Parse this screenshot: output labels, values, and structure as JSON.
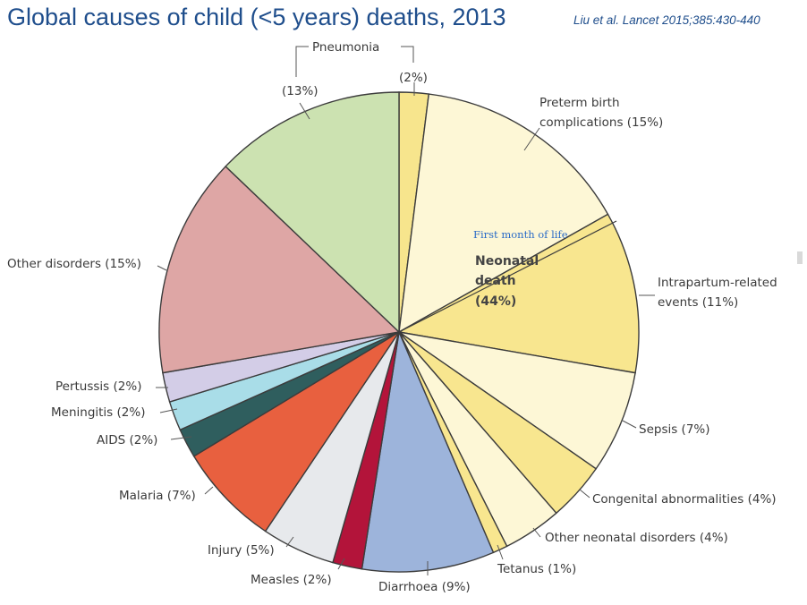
{
  "title": "Global causes of child (<5 years) deaths, 2013",
  "citation": "Liu et al. Lancet 2015;385:430-440",
  "chart_data": {
    "type": "pie",
    "title": "Global causes of child (<5 years) deaths, 2013",
    "group_labels": {
      "pneumonia": "Pneumonia",
      "neonatal": "Neonatal\ndeath\n(44%)",
      "first_month": "First month of life"
    },
    "slices": [
      {
        "id": "pneu-neo",
        "label": "(2%)",
        "value": 2,
        "color": "#f7e58d"
      },
      {
        "id": "preterm",
        "label": "Preterm birth\ncomplications (15%)",
        "value": 15,
        "color": "#fdf7d6"
      },
      {
        "id": "intrapartum",
        "label": "Intrapartum-related\nevents (11%)",
        "value": 11,
        "color": "#f8e68f"
      },
      {
        "id": "sepsis",
        "label": "Sepsis (7%)",
        "value": 7,
        "color": "#fdf7d6"
      },
      {
        "id": "congenital",
        "label": "Congenital abnormalities (4%)",
        "value": 4,
        "color": "#f8e68f"
      },
      {
        "id": "other-neo",
        "label": "Other neonatal disorders (4%)",
        "value": 4,
        "color": "#fdf7d6"
      },
      {
        "id": "tetanus",
        "label": "Tetanus (1%)",
        "value": 1,
        "color": "#f8e68f"
      },
      {
        "id": "diarrhoea",
        "label": "Diarrhoea (9%)",
        "value": 9,
        "color": "#9db4db"
      },
      {
        "id": "measles",
        "label": "Measles (2%)",
        "value": 2,
        "color": "#b3143a"
      },
      {
        "id": "injury",
        "label": "Injury (5%)",
        "value": 5,
        "color": "#e7e9ec"
      },
      {
        "id": "malaria",
        "label": "Malaria (7%)",
        "value": 7,
        "color": "#e8603f"
      },
      {
        "id": "aids",
        "label": "AIDS (2%)",
        "value": 2,
        "color": "#2f5e5e"
      },
      {
        "id": "meningitis",
        "label": "Meningitis (2%)",
        "value": 2,
        "color": "#a9dde8"
      },
      {
        "id": "pertussis",
        "label": "Pertussis (2%)",
        "value": 2,
        "color": "#d3cde7"
      },
      {
        "id": "other-disorders",
        "label": "Other disorders (15%)",
        "value": 15,
        "color": "#dea6a5"
      },
      {
        "id": "pneu-post",
        "label": "(13%)",
        "value": 13,
        "color": "#cce2b1"
      }
    ]
  }
}
